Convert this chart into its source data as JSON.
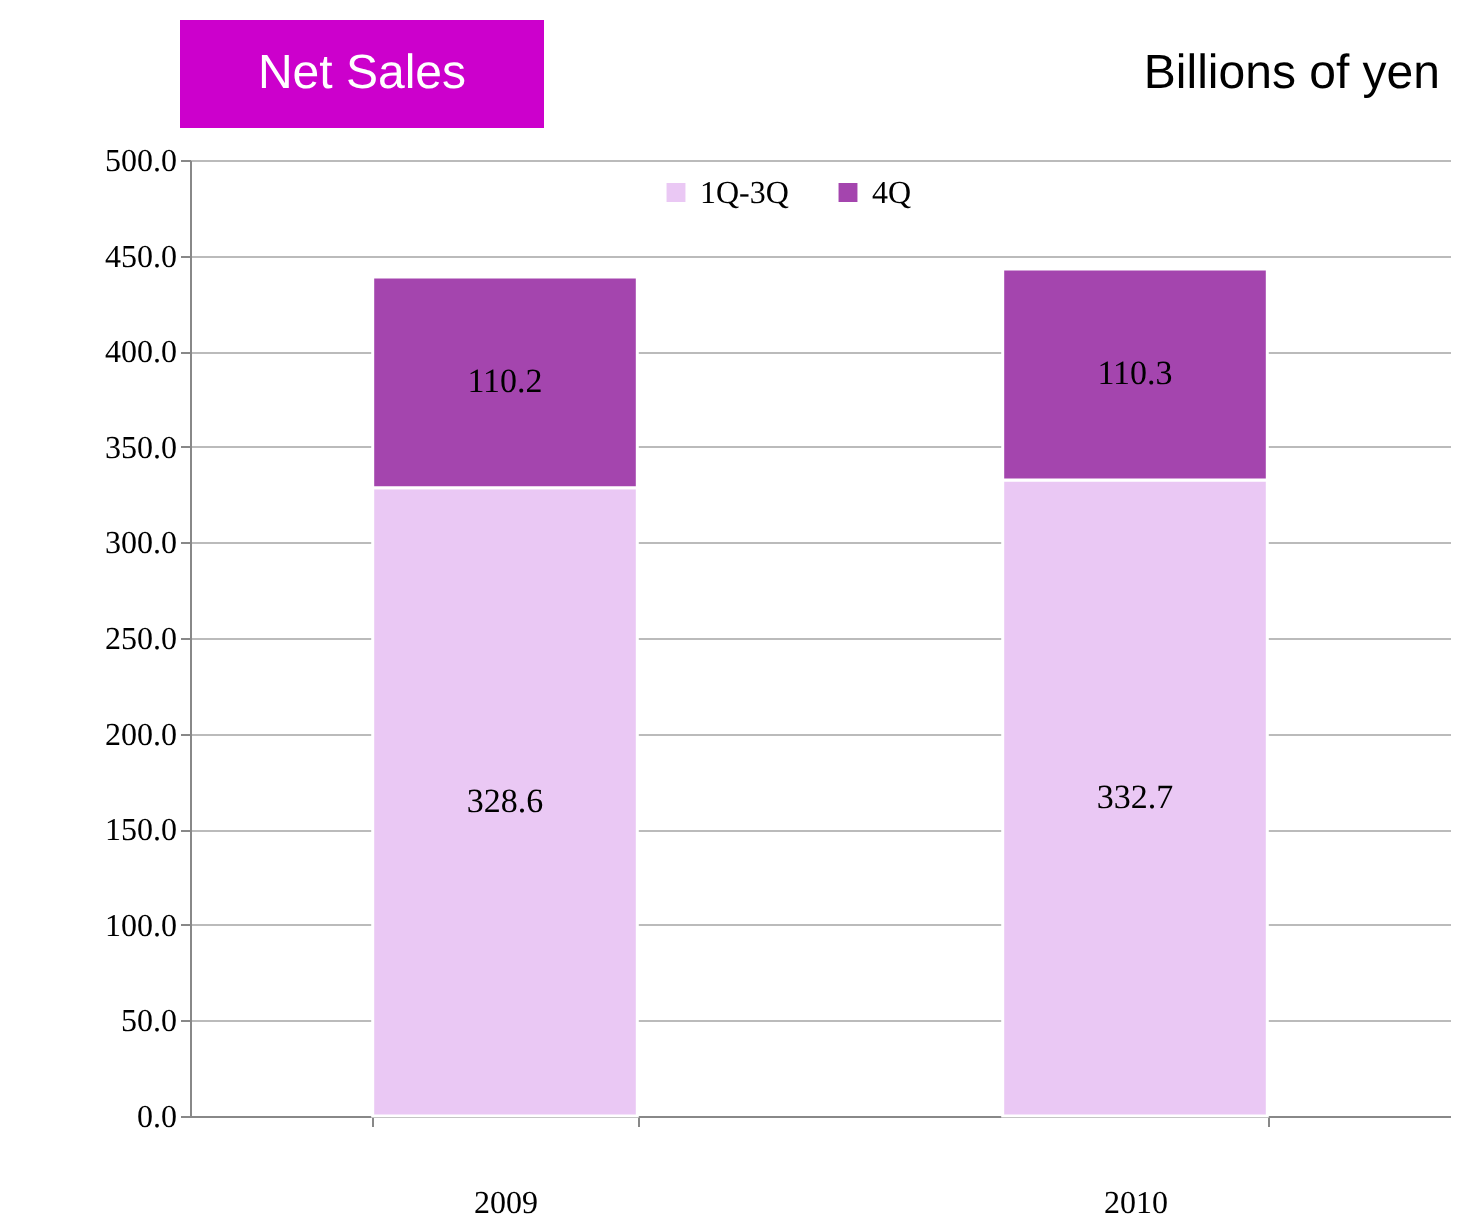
{
  "chart_data": {
    "type": "bar",
    "title": "Net Sales",
    "subtitle": "Billions of yen",
    "categories": [
      "2009",
      "2010"
    ],
    "series": [
      {
        "name": "1Q-3Q",
        "color": "#eac8f4",
        "values": [
          328.6,
          332.7
        ]
      },
      {
        "name": "4Q",
        "color": "#a445ae",
        "values": [
          110.2,
          110.3
        ]
      }
    ],
    "stacked": true,
    "data_labels": true,
    "ylim": [
      0,
      500
    ],
    "yticks": [
      {
        "value": 0,
        "label": "0.0"
      },
      {
        "value": 50,
        "label": "50.0"
      },
      {
        "value": 100,
        "label": "100.0"
      },
      {
        "value": 150,
        "label": "150.0"
      },
      {
        "value": 200,
        "label": "200.0"
      },
      {
        "value": 250,
        "label": "250.0"
      },
      {
        "value": 300,
        "label": "300.0"
      },
      {
        "value": 350,
        "label": "350.0"
      },
      {
        "value": 400,
        "label": "400.0"
      },
      {
        "value": 450,
        "label": "450.0"
      },
      {
        "value": 500,
        "label": "500.0"
      }
    ],
    "grid": "y",
    "legend": "top"
  }
}
